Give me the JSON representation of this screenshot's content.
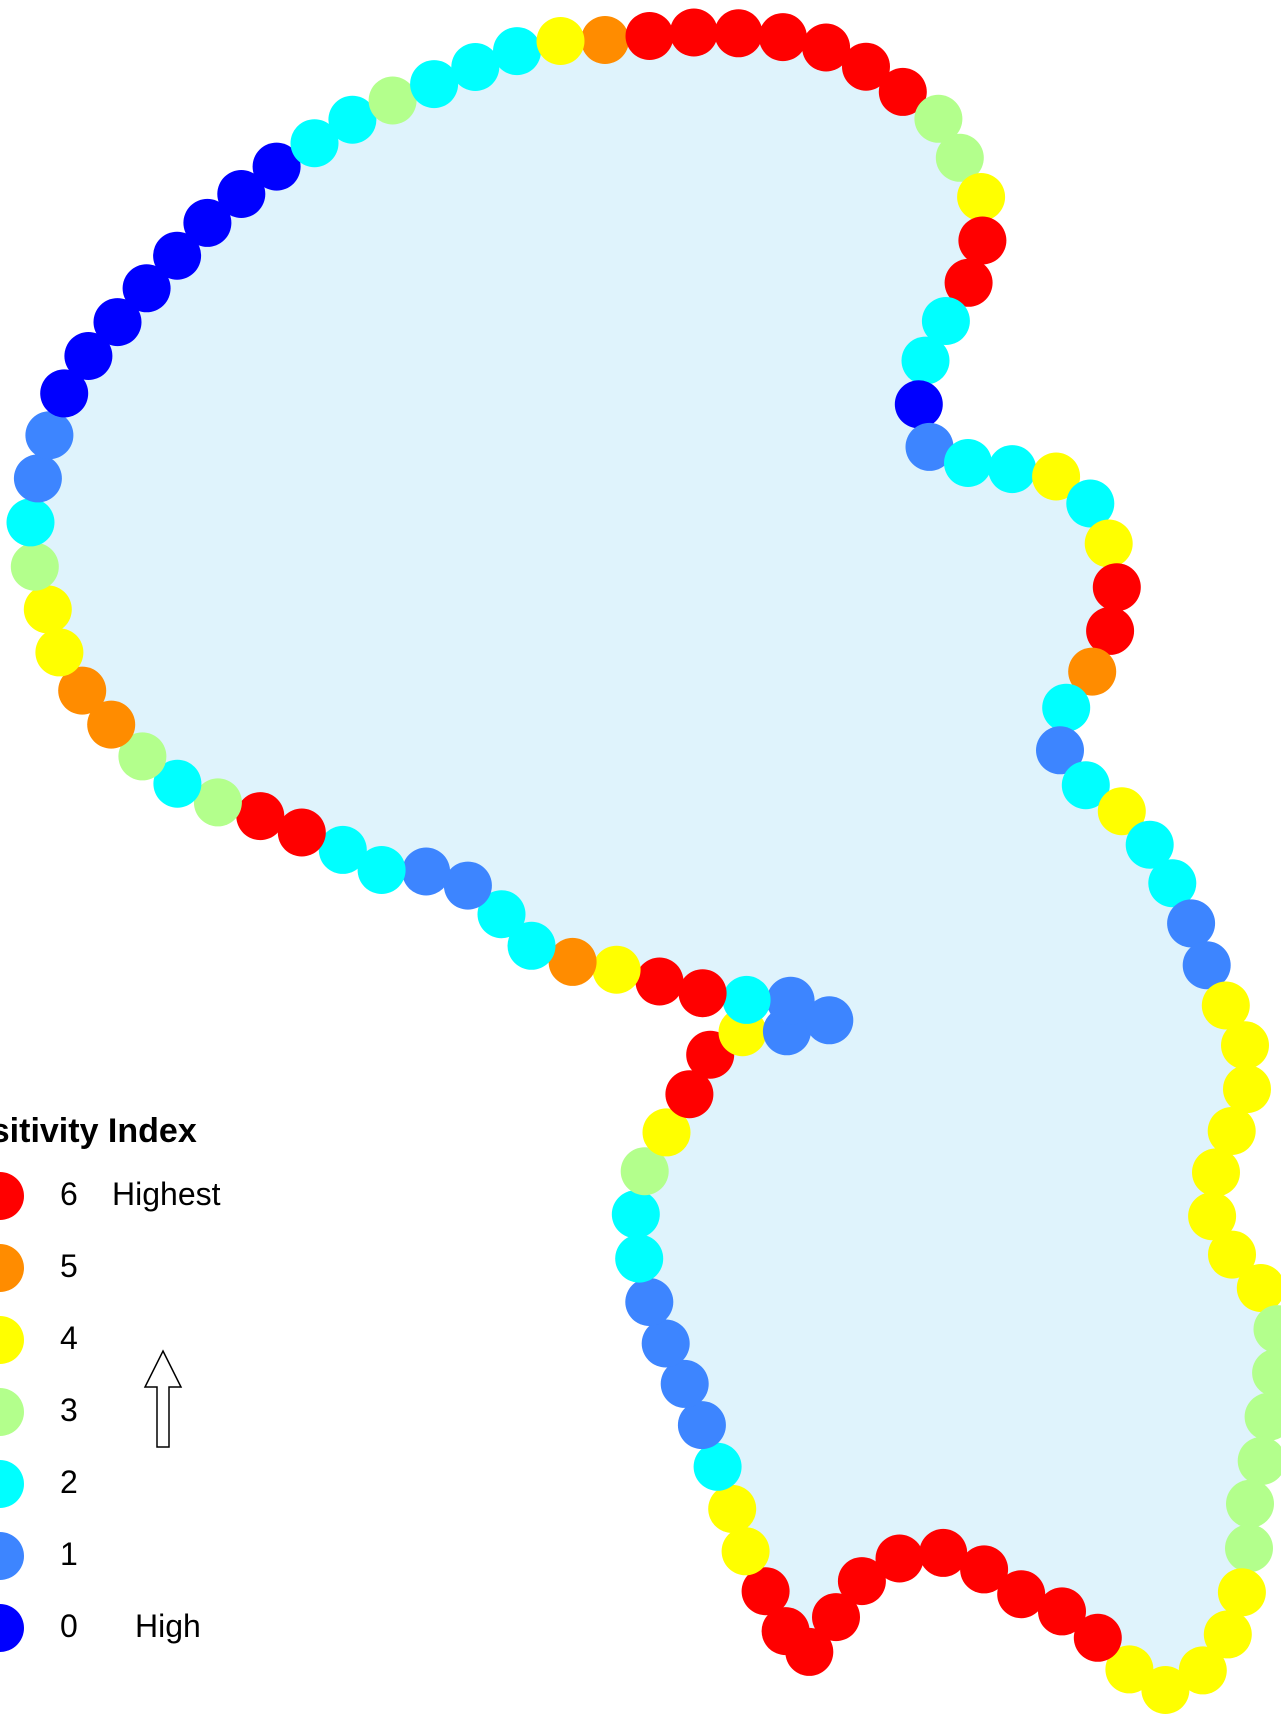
{
  "legend": {
    "title": "nsitivity Index",
    "items": [
      {
        "value": "6",
        "label": "Highest",
        "color": "#ff0000"
      },
      {
        "value": "5",
        "label": "",
        "color": "#ff8c00"
      },
      {
        "value": "4",
        "label": "",
        "color": "#ffff00"
      },
      {
        "value": "3",
        "label": "",
        "color": "#b3ff8c"
      },
      {
        "value": "2",
        "label": "",
        "color": "#00ffff"
      },
      {
        "value": "1",
        "label": "",
        "color": "#3d85ff"
      },
      {
        "value": "0",
        "label": "High",
        "color": "#0000ff"
      }
    ]
  },
  "map": {
    "fill_color": "#dff3fc",
    "sensitivity_sequence": [
      5,
      6,
      6,
      6,
      6,
      6,
      6,
      6,
      3,
      3,
      4,
      6,
      6,
      2,
      2,
      0,
      1,
      2,
      2,
      4,
      2,
      4,
      6,
      6,
      5,
      2,
      1,
      2,
      4,
      2,
      2,
      1,
      1,
      4,
      4,
      4,
      4,
      4,
      4,
      4,
      4,
      3,
      3,
      3,
      3,
      3,
      3,
      4,
      4,
      4,
      4,
      4,
      6,
      6,
      6,
      6,
      6,
      6,
      6,
      6,
      6,
      6,
      6,
      4,
      4,
      2,
      1,
      1,
      1,
      1,
      2,
      2,
      3,
      4,
      6,
      6,
      4,
      1,
      1,
      1,
      2,
      6,
      6,
      4,
      5,
      2,
      2,
      1,
      1,
      2,
      2,
      6,
      6,
      3,
      2,
      3,
      5,
      5,
      4,
      4,
      3,
      2,
      1,
      1,
      0,
      0,
      0,
      0,
      0,
      0,
      0,
      0,
      2,
      2,
      3,
      2,
      2,
      2,
      4
    ]
  }
}
